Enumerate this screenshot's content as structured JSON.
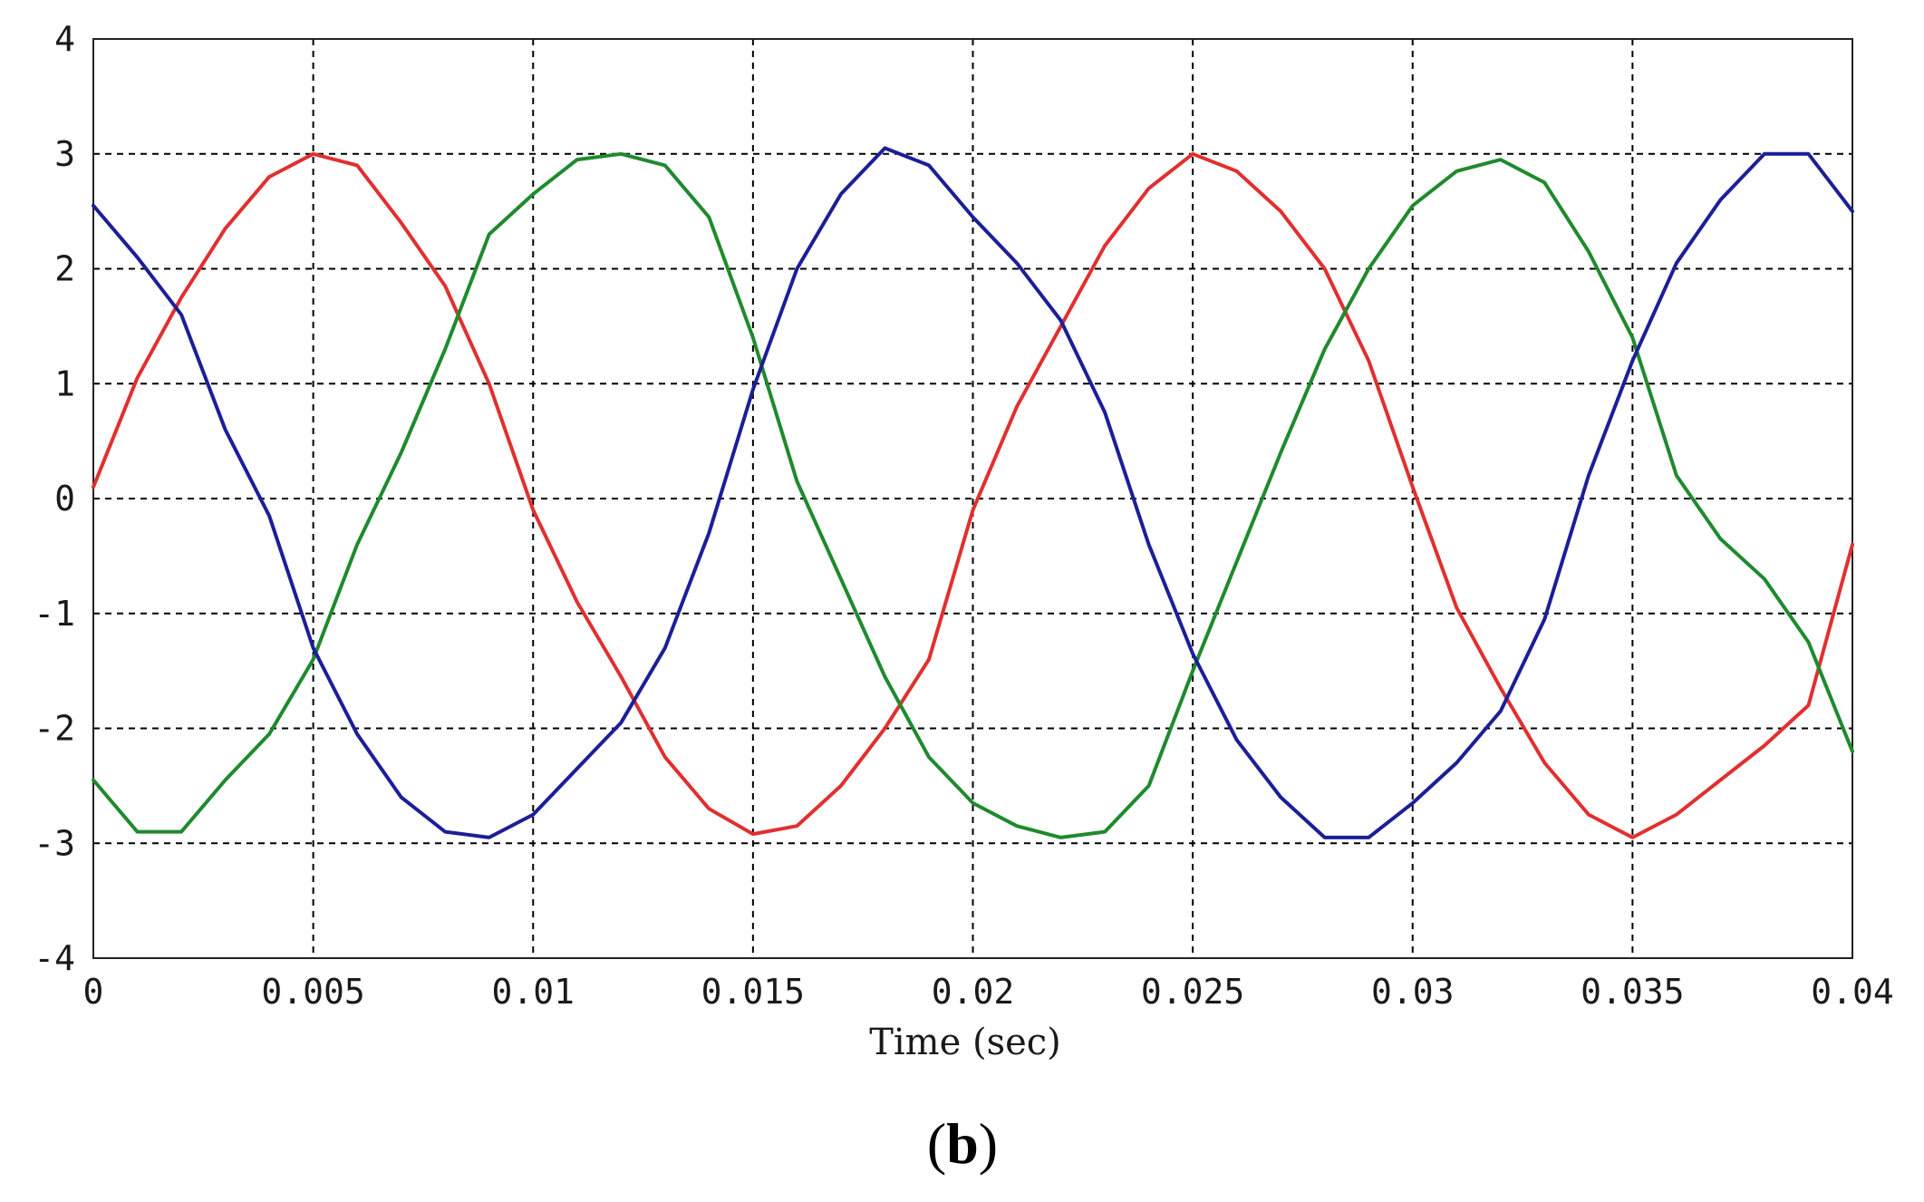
{
  "chart_data": {
    "type": "line",
    "xlabel": "Time (sec)",
    "ylabel": "",
    "title": "",
    "panel_label": {
      "open": "(",
      "letter": "b",
      "close": ")"
    },
    "xlim": [
      0,
      0.04
    ],
    "ylim": [
      -4,
      4
    ],
    "x_ticks": [
      0,
      0.005,
      0.01,
      0.015,
      0.02,
      0.025,
      0.03,
      0.035,
      0.04
    ],
    "x_tick_labels": [
      "0",
      "0.005",
      "0.01",
      "0.015",
      "0.02",
      "0.025",
      "0.03",
      "0.035",
      "0.04"
    ],
    "y_ticks": [
      -4,
      -3,
      -2,
      -1,
      0,
      1,
      2,
      3,
      4
    ],
    "y_tick_labels": [
      "-4",
      "-3",
      "-2",
      "-1",
      "0",
      "1",
      "2",
      "3",
      "4"
    ],
    "grid": true,
    "grid_style": "dashed",
    "legend": "none",
    "series": [
      {
        "color": "#e03030",
        "x": [
          0,
          0.001,
          0.002,
          0.003,
          0.004,
          0.005,
          0.006,
          0.007,
          0.008,
          0.009,
          0.01,
          0.011,
          0.012,
          0.013,
          0.014,
          0.015,
          0.016,
          0.017,
          0.018,
          0.019,
          0.02,
          0.021,
          0.022,
          0.023,
          0.024,
          0.025,
          0.026,
          0.027,
          0.028,
          0.029,
          0.03,
          0.031,
          0.032,
          0.033,
          0.034,
          0.035,
          0.036,
          0.037,
          0.038,
          0.039,
          0.04
        ],
        "values": [
          0.1,
          1.05,
          1.75,
          2.35,
          2.8,
          3.0,
          2.9,
          2.4,
          1.85,
          1.0,
          -0.1,
          -0.9,
          -1.55,
          -2.25,
          -2.7,
          -2.92,
          -2.85,
          -2.5,
          -2.0,
          -1.4,
          -0.1,
          0.8,
          1.5,
          2.2,
          2.7,
          3.0,
          2.85,
          2.5,
          2.0,
          1.2,
          0.1,
          -0.95,
          -1.65,
          -2.3,
          -2.75,
          -2.95,
          -2.75,
          -2.45,
          -2.15,
          -1.8,
          -0.4
        ]
      },
      {
        "color": "#1f8a2e",
        "x": [
          0,
          0.001,
          0.002,
          0.003,
          0.004,
          0.005,
          0.006,
          0.007,
          0.008,
          0.009,
          0.01,
          0.011,
          0.012,
          0.013,
          0.014,
          0.015,
          0.016,
          0.017,
          0.018,
          0.019,
          0.02,
          0.021,
          0.022,
          0.023,
          0.024,
          0.025,
          0.026,
          0.027,
          0.028,
          0.029,
          0.03,
          0.031,
          0.032,
          0.033,
          0.034,
          0.035,
          0.036,
          0.037,
          0.038,
          0.039,
          0.04
        ],
        "values": [
          -2.45,
          -2.9,
          -2.9,
          -2.45,
          -2.05,
          -1.4,
          -0.4,
          0.4,
          1.3,
          2.3,
          2.65,
          2.95,
          3.0,
          2.9,
          2.45,
          1.4,
          0.15,
          -0.7,
          -1.55,
          -2.25,
          -2.65,
          -2.85,
          -2.95,
          -2.9,
          -2.5,
          -1.5,
          -0.55,
          0.4,
          1.3,
          2.0,
          2.55,
          2.85,
          2.95,
          2.75,
          2.15,
          1.4,
          0.2,
          -0.35,
          -0.7,
          -1.25,
          -2.2
        ]
      },
      {
        "color": "#1c1f96",
        "x": [
          0,
          0.001,
          0.002,
          0.003,
          0.004,
          0.005,
          0.006,
          0.007,
          0.008,
          0.009,
          0.01,
          0.011,
          0.012,
          0.013,
          0.014,
          0.015,
          0.016,
          0.017,
          0.018,
          0.019,
          0.02,
          0.021,
          0.022,
          0.023,
          0.024,
          0.025,
          0.026,
          0.027,
          0.028,
          0.029,
          0.03,
          0.031,
          0.032,
          0.033,
          0.034,
          0.035,
          0.036,
          0.037,
          0.038,
          0.039,
          0.04
        ],
        "values": [
          2.55,
          2.1,
          1.6,
          0.6,
          -0.15,
          -1.3,
          -2.05,
          -2.6,
          -2.9,
          -2.95,
          -2.75,
          -2.35,
          -1.95,
          -1.3,
          -0.3,
          0.95,
          2.0,
          2.65,
          3.05,
          2.9,
          2.45,
          2.05,
          1.55,
          0.75,
          -0.4,
          -1.35,
          -2.1,
          -2.6,
          -2.95,
          -2.95,
          -2.65,
          -2.3,
          -1.85,
          -1.05,
          0.2,
          1.2,
          2.05,
          2.6,
          3.0,
          3.0,
          2.5
        ]
      }
    ]
  }
}
